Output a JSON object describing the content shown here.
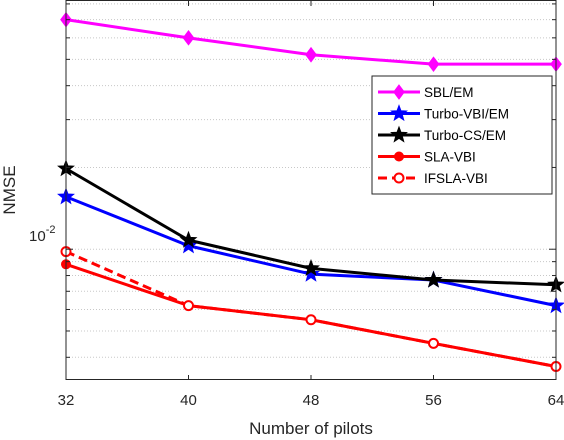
{
  "chart_data": {
    "type": "line",
    "title": "",
    "xlabel": "Number of pilots",
    "ylabel": "NMSE",
    "xlim": [
      32,
      64
    ],
    "x_ticks": [
      32,
      40,
      48,
      56,
      64
    ],
    "x_tick_labels": [
      "32",
      "40",
      "48",
      "56",
      "64"
    ],
    "y_scale": "log",
    "ylim": [
      0.0033,
      0.082
    ],
    "y_tick_label": {
      "value": 0.01,
      "base": "10",
      "exponent": "-2"
    },
    "grid": "horizontal",
    "legend_position": "right",
    "x": [
      32,
      40,
      48,
      56,
      64
    ],
    "series": [
      {
        "name": "SBL/EM",
        "values": [
          0.07,
          0.06,
          0.052,
          0.048,
          0.048
        ],
        "color": "#ff00ff",
        "marker": "diamond",
        "line": "solid"
      },
      {
        "name": "Turbo-VBI/EM",
        "values": [
          0.0156,
          0.0103,
          0.0081,
          0.0077,
          0.0062
        ],
        "color": "#0000ff",
        "marker": "star",
        "line": "solid"
      },
      {
        "name": "Turbo-CS/EM",
        "values": [
          0.0198,
          0.0108,
          0.0085,
          0.0077,
          0.0074
        ],
        "color": "#000000",
        "marker": "star",
        "line": "solid"
      },
      {
        "name": "SLA-VBI",
        "values": [
          0.0088,
          0.0062,
          0.0055,
          0.0045,
          0.0037
        ],
        "color": "#ff0000",
        "marker": "circle",
        "line": "solid"
      },
      {
        "name": "IFSLA-VBI",
        "values": [
          0.0098,
          0.0062,
          0.0055,
          0.0045,
          0.0037
        ],
        "color": "#ff0000",
        "marker": "open-circle",
        "line": "dashed"
      }
    ]
  }
}
